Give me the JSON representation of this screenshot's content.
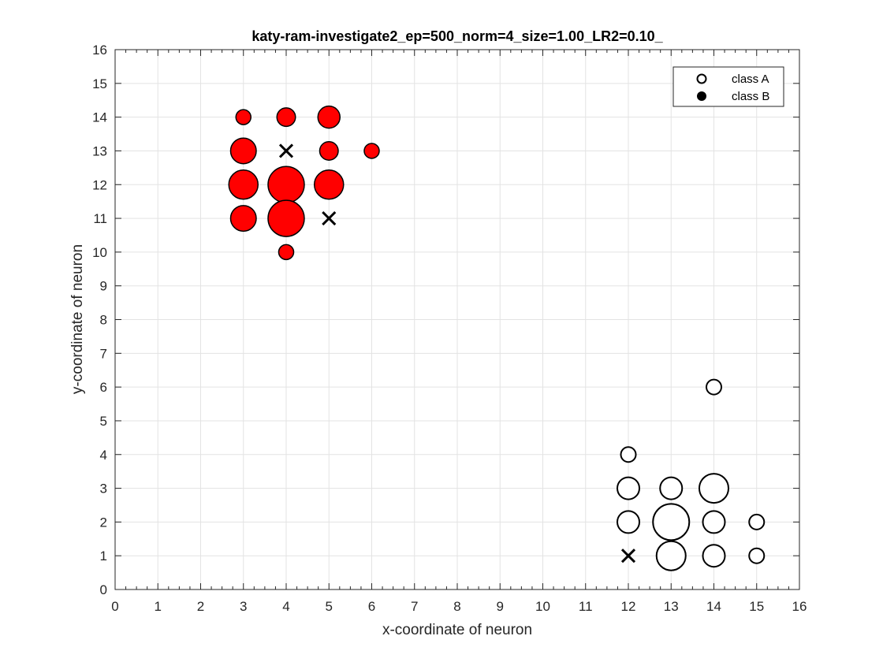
{
  "chart_data": {
    "type": "scatter",
    "title": "katy-ram-investigate2_ep=500_norm=4_size=1.00_LR2=0.10_",
    "xlabel": "x-coordinate of neuron",
    "ylabel": "y-coordinate of neuron",
    "xlim": [
      0,
      16
    ],
    "ylim": [
      0,
      16
    ],
    "xticks": [
      0,
      1,
      2,
      3,
      4,
      5,
      6,
      7,
      8,
      9,
      10,
      11,
      12,
      13,
      14,
      15,
      16
    ],
    "yticks": [
      0,
      1,
      2,
      3,
      4,
      5,
      6,
      7,
      8,
      9,
      10,
      11,
      12,
      13,
      14,
      15,
      16
    ],
    "grid": true,
    "legend_position": "top-right",
    "series": [
      {
        "name": "class A",
        "marker": "open-circle",
        "color": "#ffffff",
        "points": [
          {
            "x": 12,
            "y": 4,
            "size": 1
          },
          {
            "x": 12,
            "y": 3,
            "size": 2
          },
          {
            "x": 12,
            "y": 2,
            "size": 2
          },
          {
            "x": 13,
            "y": 3,
            "size": 2
          },
          {
            "x": 13,
            "y": 2,
            "size": 4
          },
          {
            "x": 13,
            "y": 1,
            "size": 3
          },
          {
            "x": 14,
            "y": 6,
            "size": 1
          },
          {
            "x": 14,
            "y": 3,
            "size": 3
          },
          {
            "x": 14,
            "y": 2,
            "size": 2
          },
          {
            "x": 14,
            "y": 1,
            "size": 2
          },
          {
            "x": 15,
            "y": 2,
            "size": 1
          },
          {
            "x": 15,
            "y": 1,
            "size": 1
          }
        ]
      },
      {
        "name": "class B",
        "marker": "filled-circle",
        "color": "#ff0000",
        "points": [
          {
            "x": 3,
            "y": 14,
            "size": 1
          },
          {
            "x": 4,
            "y": 14,
            "size": 1.5
          },
          {
            "x": 5,
            "y": 14,
            "size": 2
          },
          {
            "x": 3,
            "y": 13,
            "size": 2.5
          },
          {
            "x": 5,
            "y": 13,
            "size": 1.5
          },
          {
            "x": 6,
            "y": 13,
            "size": 1
          },
          {
            "x": 3,
            "y": 12,
            "size": 3
          },
          {
            "x": 4,
            "y": 12,
            "size": 4
          },
          {
            "x": 5,
            "y": 12,
            "size": 3
          },
          {
            "x": 3,
            "y": 11,
            "size": 2.5
          },
          {
            "x": 4,
            "y": 11,
            "size": 4
          },
          {
            "x": 4,
            "y": 10,
            "size": 1
          }
        ]
      },
      {
        "marker": "cross",
        "color": "#000000",
        "points": [
          {
            "x": 4,
            "y": 13
          },
          {
            "x": 5,
            "y": 11
          },
          {
            "x": 12,
            "y": 1
          }
        ]
      }
    ],
    "legend": [
      {
        "label": "class A",
        "marker": "open-circle"
      },
      {
        "label": "class B",
        "marker": "filled-circle"
      }
    ]
  }
}
